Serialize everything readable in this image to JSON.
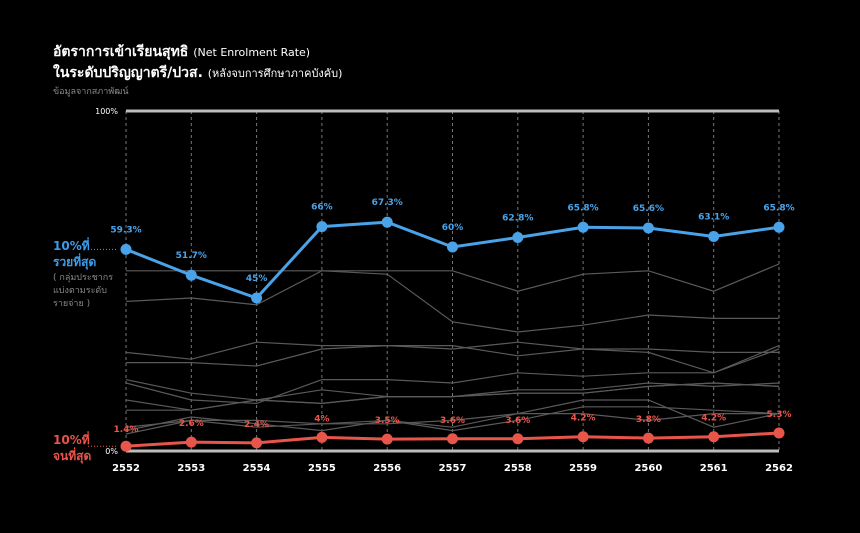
{
  "title": {
    "line1_th": "อัตราการเข้าเรียนสุทธิ",
    "line1_en": "(Net Enrolment Rate)",
    "line2_th": "ในระดับปริญญาตรี/ปวส.",
    "line2_en": "(หลังจบการศึกษาภาคบังคับ)"
  },
  "source": "ข้อมูลจากสภาพัฒน์",
  "labels": {
    "top_line1": "10%ที่",
    "top_line2": "รวยที่สุด",
    "bottom_line1": "10%ที่",
    "bottom_line2": "จนที่สุด",
    "note_line1": "( กลุ่มประชากร",
    "note_line2": "แบ่งตามระดับ",
    "note_line3": "รายจ่าย )"
  },
  "colors": {
    "richest": "#4aa3e8",
    "poorest": "#e8554a",
    "other": "#5a5a5a",
    "grid": "#777777"
  },
  "chart_data": {
    "type": "line",
    "x": [
      "2552",
      "2553",
      "2554",
      "2555",
      "2556",
      "2557",
      "2558",
      "2559",
      "2560",
      "2561",
      "2562"
    ],
    "ylim": [
      0,
      100
    ],
    "yticks": [
      "0%",
      "100%"
    ],
    "series": [
      {
        "name": "10%ที่รวยที่สุด",
        "role": "richest",
        "values": [
          59.3,
          51.7,
          45,
          66,
          67.3,
          60,
          62.8,
          65.8,
          65.6,
          63.1,
          65.8
        ],
        "labels": [
          "59.3%",
          "51.7%",
          "45%",
          "66%",
          "67.3%",
          "60%",
          "62.8%",
          "65.8%",
          "65.6%",
          "63.1%",
          "65.8%"
        ]
      },
      {
        "name": "10%ที่จนที่สุด",
        "role": "poorest",
        "values": [
          1.4,
          2.6,
          2.4,
          4,
          3.5,
          3.6,
          3.6,
          4.2,
          3.8,
          4.2,
          5.3
        ],
        "labels": [
          "1.4%",
          "2.6%",
          "2.4%",
          "4%",
          "3.5%",
          "3.6%",
          "3.6%",
          "4.2%",
          "3.8%",
          "4.2%",
          "5.3%"
        ]
      },
      {
        "role": "other",
        "values": [
          44,
          45,
          43,
          53,
          52,
          38,
          35,
          37,
          40,
          39,
          39
        ]
      },
      {
        "role": "other",
        "values": [
          53,
          53,
          53,
          53,
          53,
          53,
          47,
          52,
          53,
          47,
          55
        ]
      },
      {
        "role": "other",
        "values": [
          29,
          27,
          32,
          31,
          31,
          31,
          28,
          30,
          29,
          23,
          30
        ]
      },
      {
        "role": "other",
        "values": [
          26,
          26,
          25,
          30,
          31,
          30,
          32,
          30,
          30,
          29,
          29
        ]
      },
      {
        "role": "other",
        "values": [
          20,
          15,
          14,
          21,
          21,
          20,
          23,
          22,
          23,
          23,
          31
        ]
      },
      {
        "role": "other",
        "values": [
          21,
          17,
          15,
          18,
          16,
          16,
          18,
          18,
          20,
          19,
          20
        ]
      },
      {
        "role": "other",
        "values": [
          15,
          12,
          15,
          14,
          16,
          16,
          17,
          17,
          19,
          20,
          19
        ]
      },
      {
        "role": "other",
        "values": [
          12,
          12,
          15,
          14,
          16,
          16,
          17,
          17,
          19,
          20,
          19
        ]
      },
      {
        "role": "other",
        "values": [
          7,
          9,
          9,
          8,
          8,
          9,
          11,
          11,
          9,
          11,
          11
        ]
      },
      {
        "role": "other",
        "values": [
          6,
          10,
          8,
          6,
          9,
          7,
          11,
          15,
          15,
          7,
          11
        ]
      },
      {
        "role": "other",
        "values": [
          5,
          9,
          7,
          8,
          9,
          6,
          9,
          13,
          13,
          12,
          11
        ]
      }
    ]
  }
}
